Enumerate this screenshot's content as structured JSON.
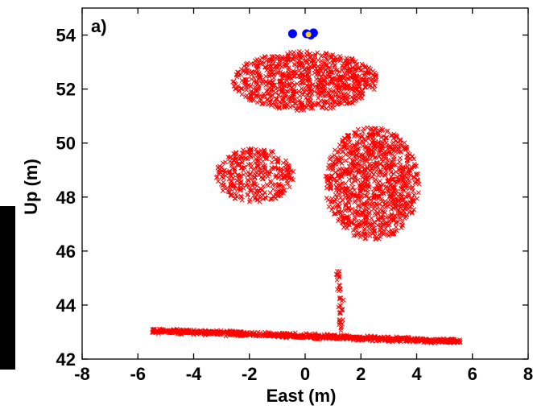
{
  "chart_data": {
    "type": "scatter",
    "panel_label": "a)",
    "xlabel": "East (m)",
    "ylabel": "Up (m)",
    "xlim": [
      -8,
      8
    ],
    "ylim": [
      42,
      55
    ],
    "xticks": [
      -8,
      -6,
      -4,
      -2,
      0,
      2,
      4,
      6,
      8
    ],
    "yticks": [
      42,
      44,
      46,
      48,
      50,
      52,
      54
    ],
    "grid": false,
    "series": [
      {
        "marker": "x",
        "color": "#ff0000",
        "regions": [
          {
            "part": "ground",
            "x_range": [
              -5.5,
              5.6
            ],
            "y_at_left": 43.05,
            "y_at_right": 42.65,
            "thickness": 0.25
          },
          {
            "part": "trunk",
            "x_range": [
              0.9,
              1.5
            ],
            "y_range": [
              43.0,
              45.3
            ]
          },
          {
            "part": "crown-upper",
            "center": [
              0.0,
              52.3
            ],
            "extent": [
              2.6,
              1.1
            ]
          },
          {
            "part": "crown-right",
            "center": [
              2.4,
              48.5
            ],
            "extent": [
              1.7,
              2.1
            ]
          },
          {
            "part": "crown-left",
            "center": [
              -1.8,
              48.8
            ],
            "extent": [
              1.4,
              1.0
            ]
          }
        ]
      },
      {
        "marker": "o",
        "color": "#0000ff",
        "points": [
          [
            -0.45,
            54.05
          ],
          [
            0.05,
            54.05
          ],
          [
            0.3,
            54.08
          ],
          [
            0.2,
            54.0
          ]
        ]
      },
      {
        "marker": "o",
        "color": "#ffd700",
        "points": [
          [
            0.12,
            54.02
          ]
        ]
      }
    ]
  }
}
